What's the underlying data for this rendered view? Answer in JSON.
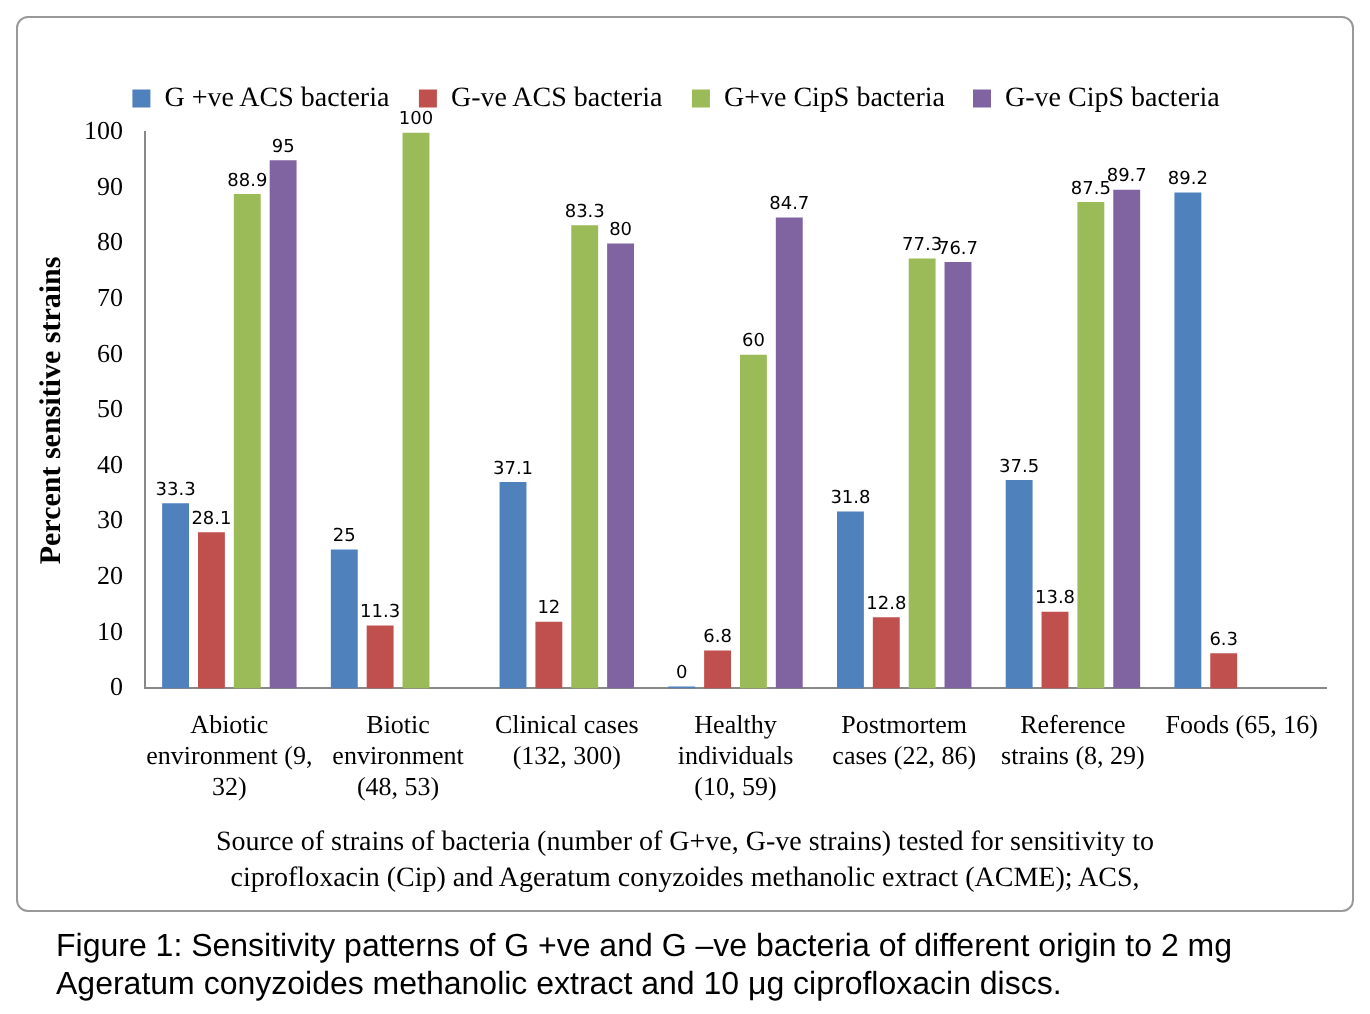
{
  "chart_data": {
    "type": "bar",
    "xlabel": "Source of strains of bacteria (number of G+ve, G-ve strains) tested for sensitivity to ciprofloxacin (Cip) and Ageratum conyzoides methanolic extract (ACME); ACS,",
    "ylabel": "Percent sensitive strains",
    "annotations": [
      "Figure 1: Sensitivity patterns of G +ve and G –ve bacteria of different origin to 2 mg Ageratum conyzoides methanolic extract and 10 μg ciprofloxacin discs."
    ],
    "categories": [
      "Abiotic environment (9, 32)",
      "Biotic environment (48, 53)",
      "Clinical cases (132, 300)",
      "Healthy individuals (10, 59)",
      "Postmortem cases (22, 86)",
      "Reference strains (8, 29)",
      "Foods (65, 16)"
    ],
    "series": [
      {
        "name": "G +ve ACS bacteria",
        "color": "#4f81bd",
        "values": [
          33.3,
          25,
          37.1,
          0,
          31.8,
          37.5,
          89.2
        ]
      },
      {
        "name": "G-ve ACS bacteria",
        "color": "#c0504d",
        "values": [
          28.1,
          11.3,
          12,
          6.8,
          12.8,
          13.8,
          6.3
        ]
      },
      {
        "name": "G+ve CipS bacteria",
        "color": "#9bbb59",
        "values": [
          88.9,
          100,
          83.3,
          60,
          77.3,
          87.5,
          null
        ]
      },
      {
        "name": "G-ve CipS bacteria",
        "color": "#8064a2",
        "values": [
          95,
          null,
          80,
          84.7,
          76.7,
          89.7,
          null
        ]
      }
    ],
    "ylim": [
      0,
      100
    ],
    "yticks": [
      0,
      10,
      20,
      30,
      40,
      50,
      60,
      70,
      80,
      90,
      100
    ],
    "grid": false,
    "legend": "top",
    "data_labels": true
  }
}
